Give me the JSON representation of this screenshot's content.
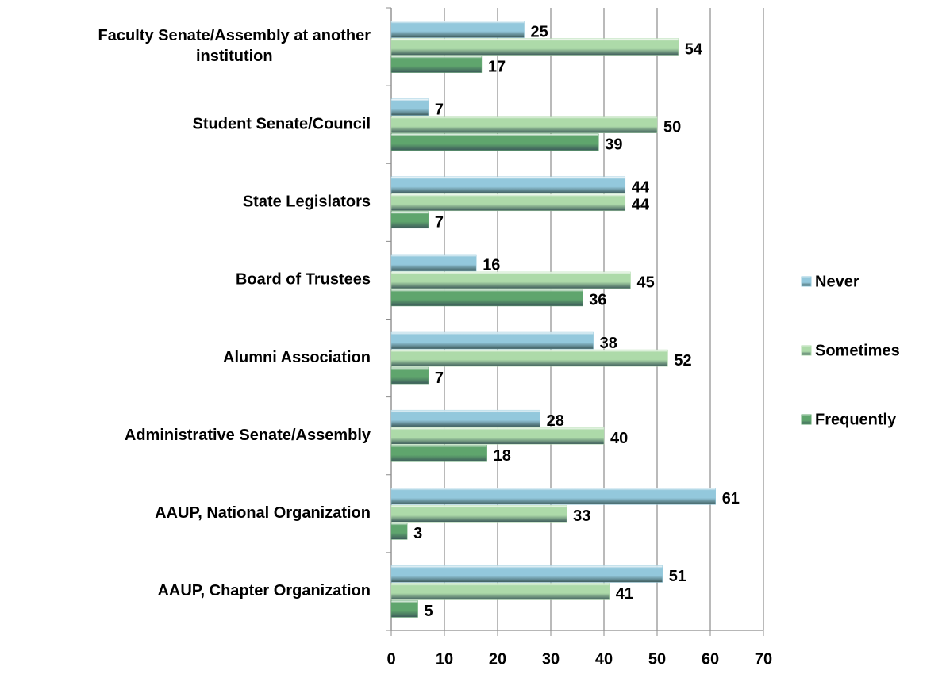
{
  "chart_data": {
    "type": "bar",
    "orientation": "horizontal",
    "categories": [
      "Faculty Senate/Assembly at another institution",
      "Student Senate/Council",
      "State Legislators",
      "Board of Trustees",
      "Alumni Association",
      "Administrative Senate/Assembly",
      "AAUP, National Organization",
      "AAUP, Chapter Organization"
    ],
    "series": [
      {
        "name": "Never",
        "color": "#93c8dc",
        "values": [
          25,
          7,
          44,
          16,
          38,
          28,
          61,
          51
        ]
      },
      {
        "name": "Sometimes",
        "color": "#addaa9",
        "values": [
          54,
          50,
          44,
          45,
          52,
          40,
          33,
          41
        ]
      },
      {
        "name": "Frequently",
        "color": "#5fa56d",
        "values": [
          17,
          39,
          7,
          36,
          7,
          18,
          3,
          5
        ]
      }
    ],
    "xlim": [
      0,
      70
    ],
    "xticks": [
      0,
      10,
      20,
      30,
      40,
      50,
      60,
      70
    ],
    "grid": true,
    "legend": "right"
  }
}
